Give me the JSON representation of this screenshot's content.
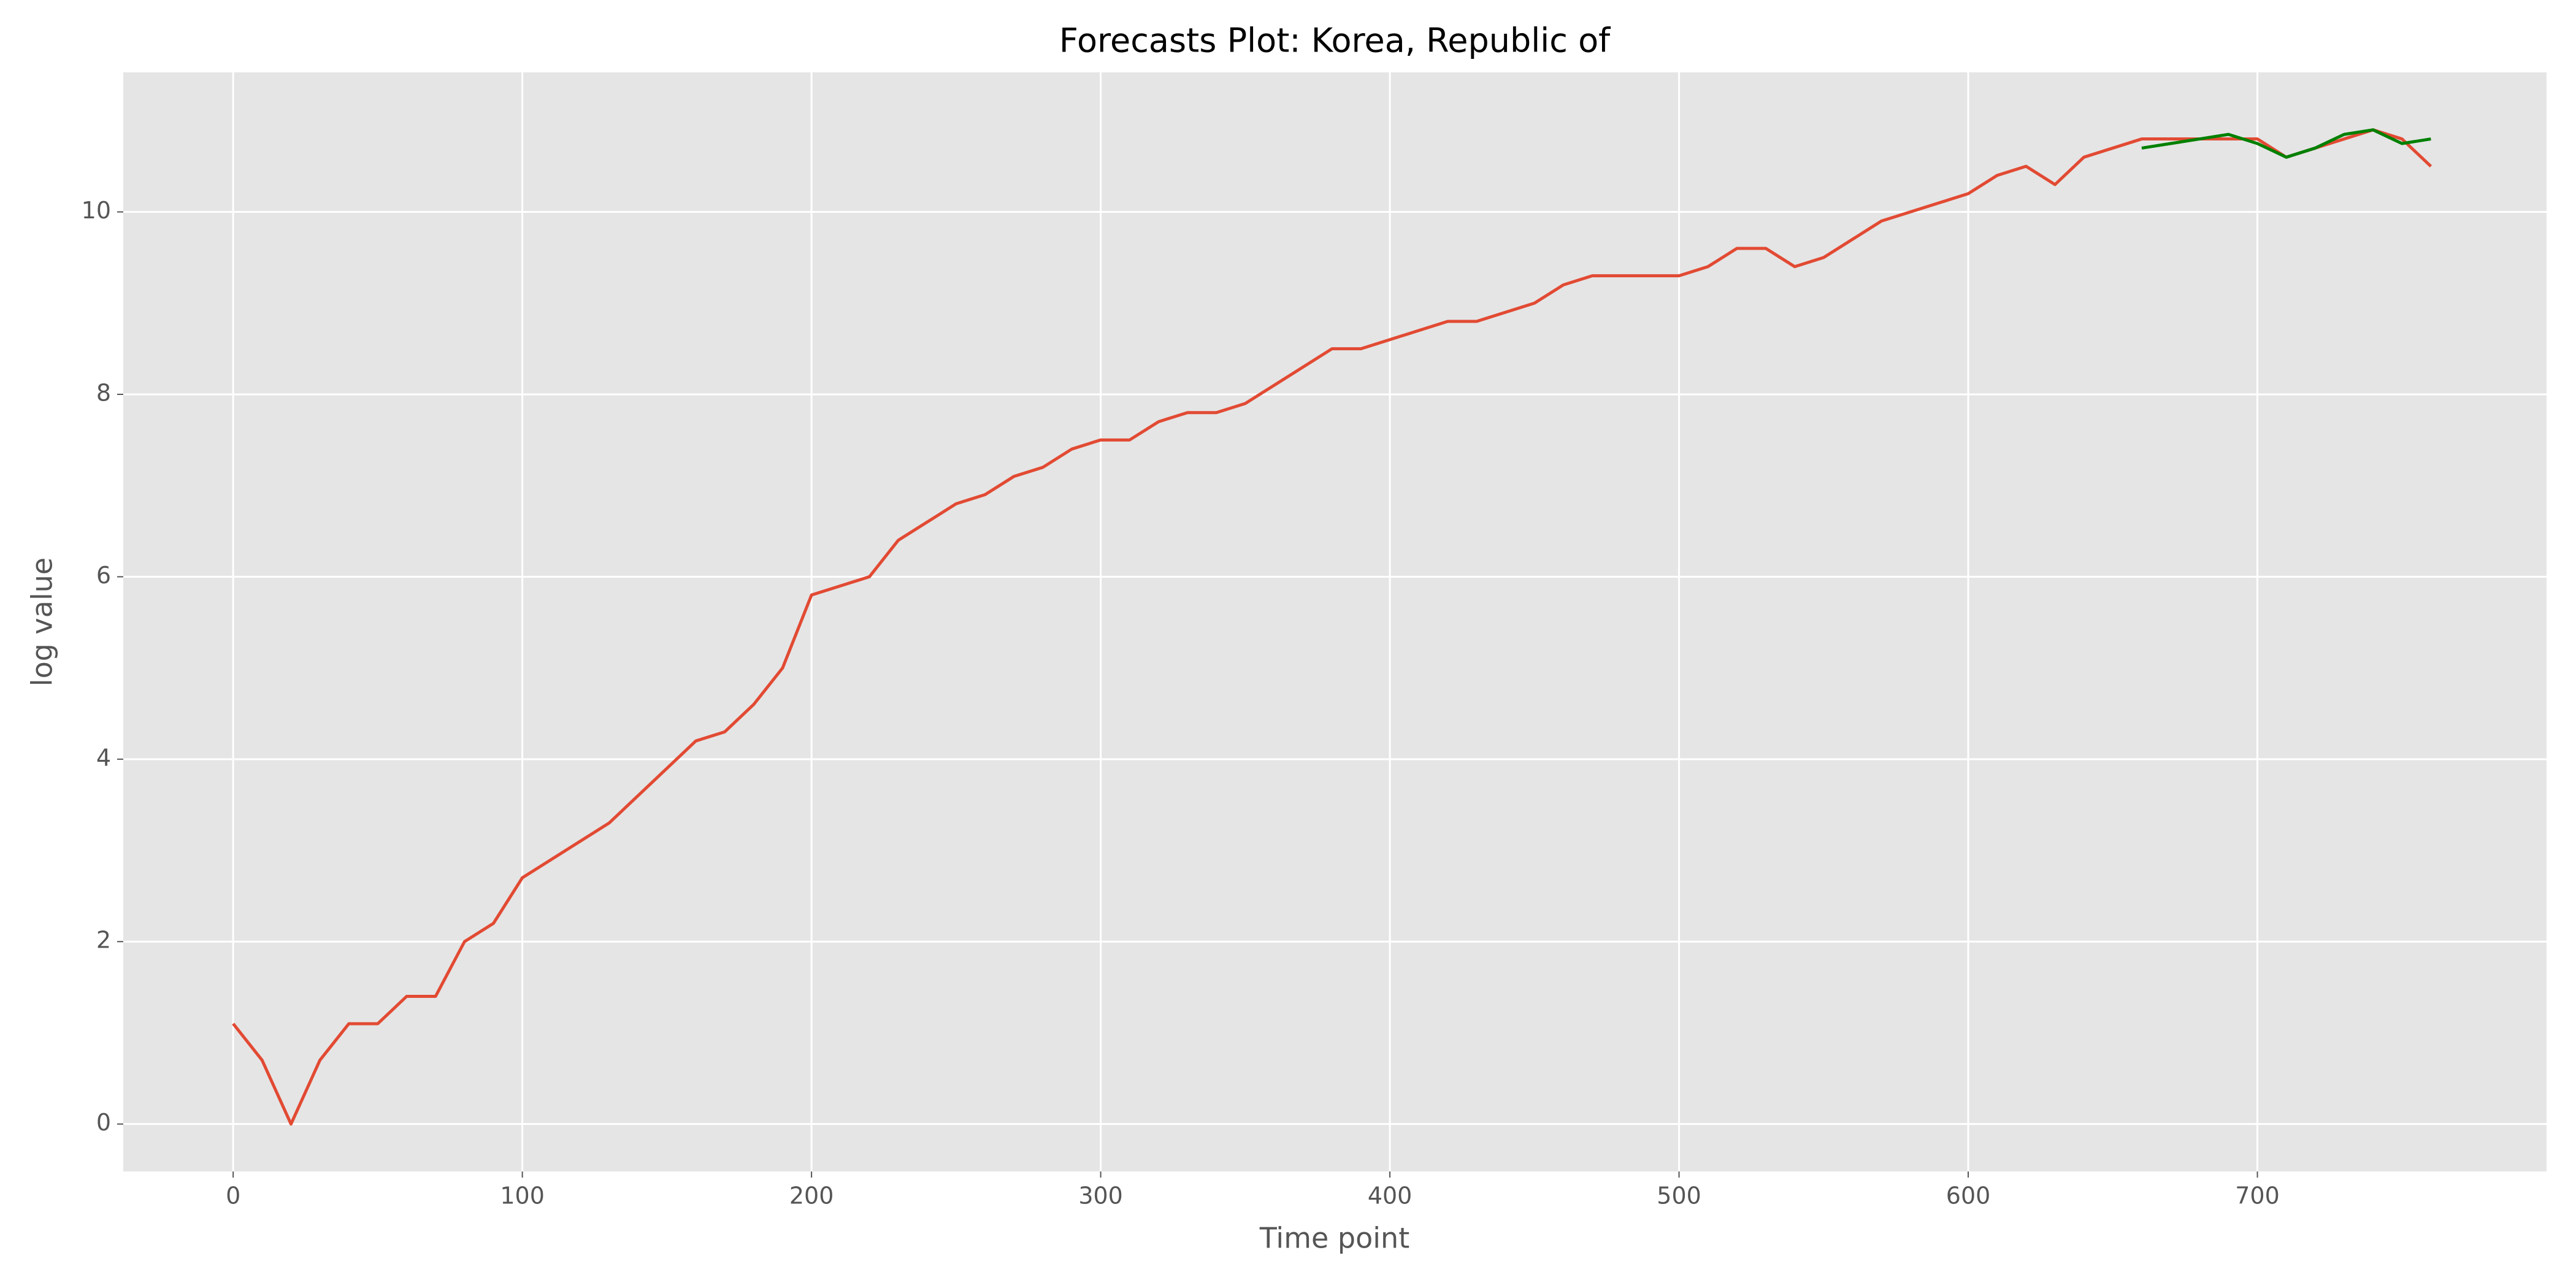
{
  "chart_data": {
    "type": "line",
    "title": "Forecasts Plot: Korea, Republic of",
    "x_label": "Time point",
    "y_label": "log value",
    "x": [
      0,
      10,
      20,
      30,
      40,
      50,
      60,
      70,
      80,
      90,
      100,
      110,
      120,
      130,
      140,
      150,
      160,
      170,
      180,
      190,
      200,
      210,
      220,
      230,
      240,
      250,
      260,
      270,
      280,
      290,
      300,
      310,
      320,
      330,
      340,
      350,
      360,
      370,
      380,
      390,
      400,
      410,
      420,
      430,
      440,
      450,
      460,
      470,
      480,
      490,
      500,
      510,
      520,
      530,
      540,
      550,
      560,
      570,
      580,
      590,
      600,
      610,
      620,
      630,
      640,
      650,
      660,
      670,
      680,
      690,
      700,
      710,
      720,
      730,
      740,
      750,
      760
    ],
    "series": [
      {
        "color": "#e24a33",
        "values": [
          1.1,
          0.7,
          0,
          0.7,
          1.1,
          1.1,
          1.4,
          1.4,
          2.0,
          2.2,
          2.7,
          2.9,
          3.1,
          3.3,
          3.6,
          3.9,
          4.2,
          4.3,
          4.6,
          5.0,
          5.8,
          5.9,
          6.0,
          6.4,
          6.6,
          6.8,
          6.9,
          7.1,
          7.2,
          7.4,
          7.5,
          7.5,
          7.7,
          7.8,
          7.8,
          7.9,
          8.1,
          8.3,
          8.5,
          8.5,
          8.6,
          8.7,
          8.8,
          8.8,
          8.9,
          9.0,
          9.2,
          9.3,
          9.3,
          9.3,
          9.3,
          9.4,
          9.6,
          9.6,
          9.4,
          9.5,
          9.7,
          9.9,
          10.0,
          10.1,
          10.2,
          10.4,
          10.5,
          10.3,
          10.6,
          10.7,
          10.8,
          10.8,
          10.8,
          10.8,
          10.8,
          10.6,
          10.7,
          10.8,
          10.9,
          10.8,
          10.5
        ]
      },
      {
        "color": "#008000",
        "values": [
          null,
          null,
          null,
          null,
          null,
          null,
          null,
          null,
          null,
          null,
          null,
          null,
          null,
          null,
          null,
          null,
          null,
          null,
          null,
          null,
          null,
          null,
          null,
          null,
          null,
          null,
          null,
          null,
          null,
          null,
          null,
          null,
          null,
          null,
          null,
          null,
          null,
          null,
          null,
          null,
          null,
          null,
          null,
          null,
          null,
          null,
          null,
          null,
          null,
          null,
          null,
          null,
          null,
          null,
          null,
          null,
          null,
          null,
          null,
          null,
          null,
          null,
          null,
          null,
          null,
          null,
          10.7,
          10.75,
          10.8,
          10.85,
          10.75,
          10.6,
          10.7,
          10.85,
          10.9,
          10.75,
          10.8
        ]
      }
    ],
    "xlim": [
      -38,
      800
    ],
    "ylim": [
      -0.52,
      11.53
    ],
    "xticks": [
      0,
      100,
      200,
      300,
      400,
      500,
      600,
      700
    ],
    "yticks": [
      0,
      2,
      4,
      6,
      8,
      10
    ],
    "grid": true
  }
}
